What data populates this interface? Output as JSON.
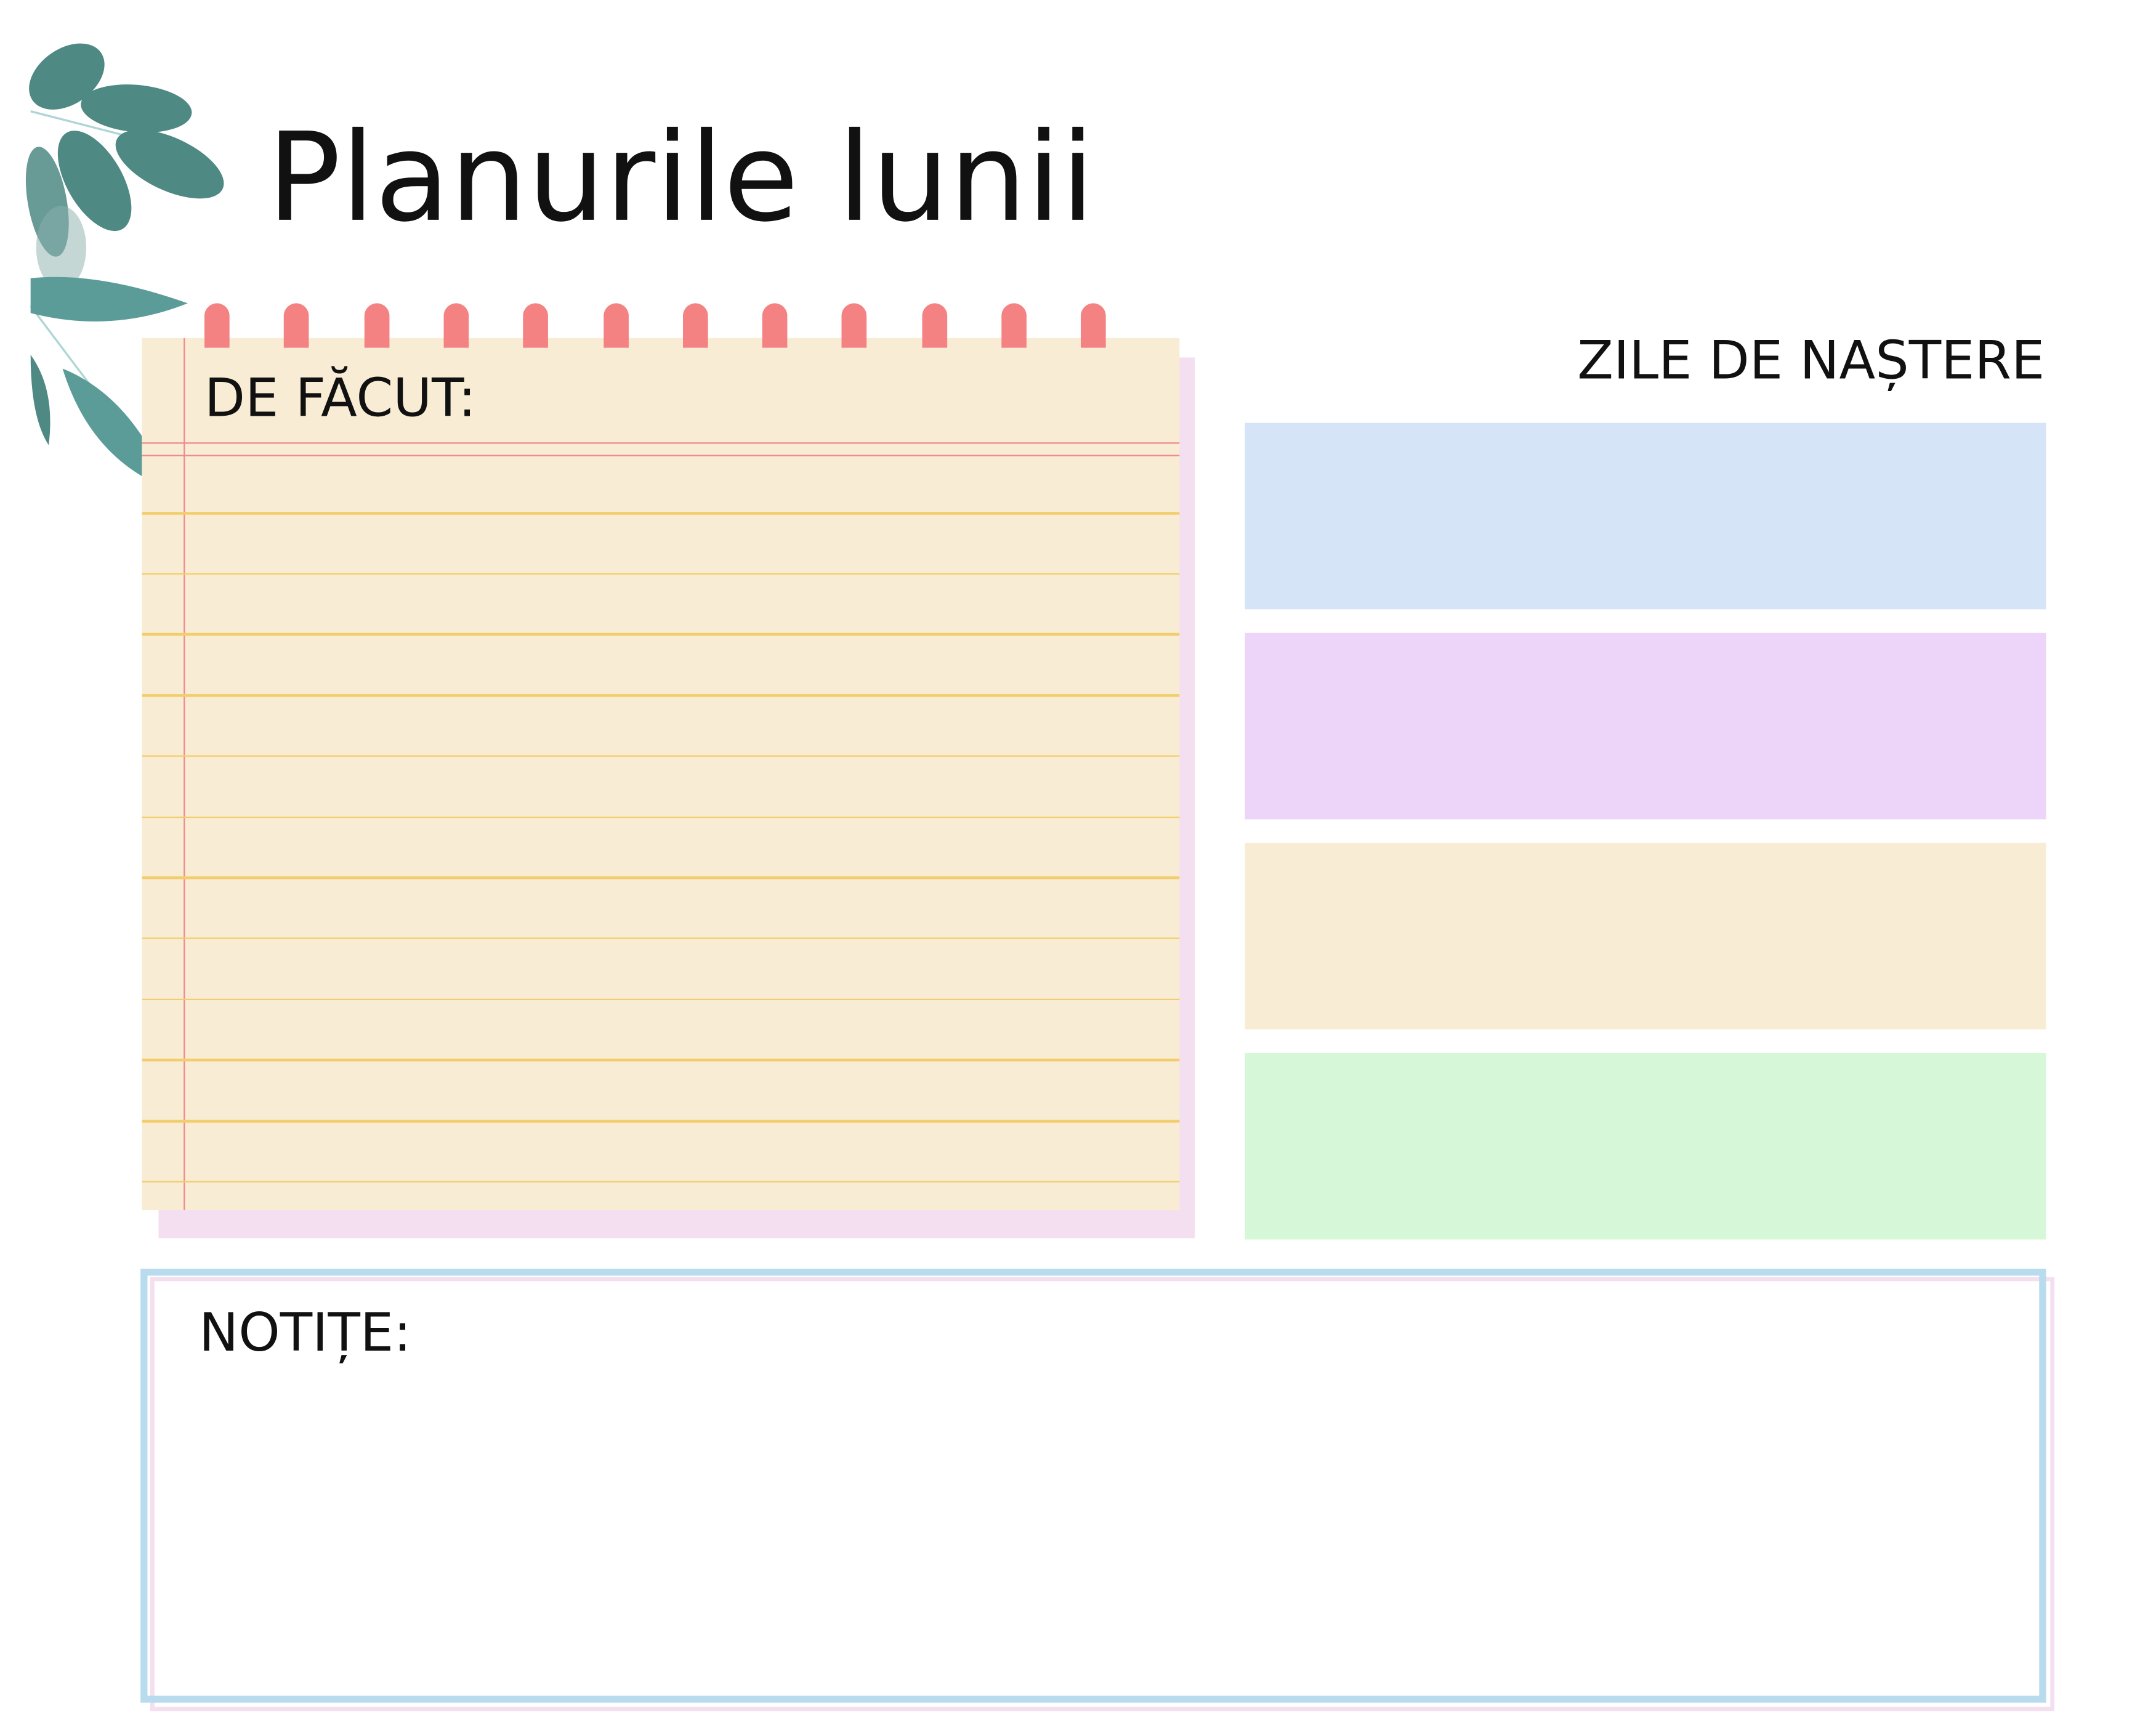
{
  "title": "Planurile lunii",
  "todo": {
    "label": "DE FĂCUT:",
    "ring_count": 12,
    "ring_color": "#f58283",
    "paper_color": "#f8edd4"
  },
  "birthdays": {
    "title": "ZILE DE NAȘTERE",
    "boxes": [
      {
        "color": "#d6e4f8"
      },
      {
        "color": "#ecd5f8"
      },
      {
        "color": "#f8edd4"
      },
      {
        "color": "#d6f8d8"
      }
    ]
  },
  "notes": {
    "label": "NOTIȚE:",
    "border_color": "#b8dcee"
  },
  "decoration": {
    "icon": "eucalyptus-leaves-icon",
    "color": "#3f7f7a"
  }
}
